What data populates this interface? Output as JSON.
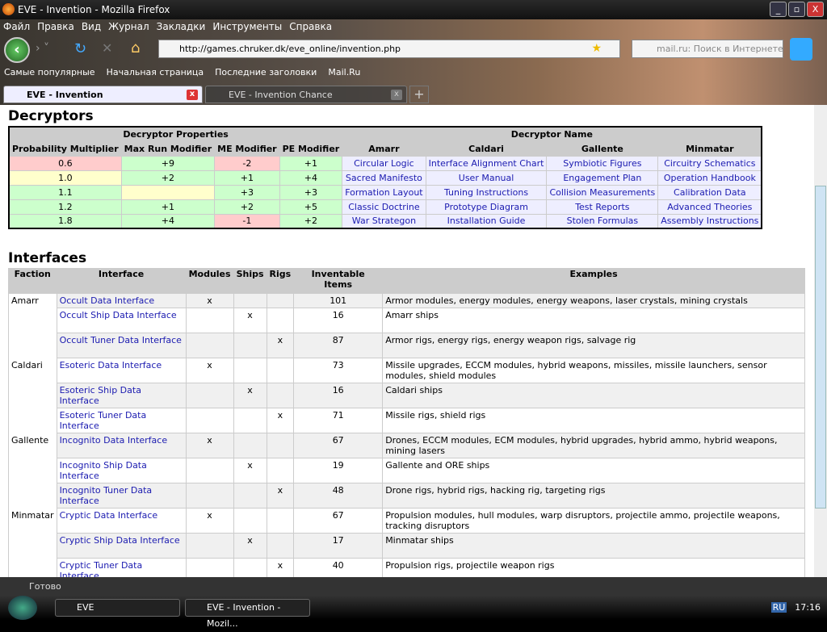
{
  "window": {
    "title": "EVE - Invention - Mozilla Firefox"
  },
  "menu": [
    "Файл",
    "Правка",
    "Вид",
    "Журнал",
    "Закладки",
    "Инструменты",
    "Справка"
  ],
  "url": "http://games.chruker.dk/eve_online/invention.php",
  "search_placeholder": "mail.ru: Поиск в Интернете",
  "bookmarks": [
    "Самые популярные",
    "Начальная страница",
    "Последние заголовки",
    "Mail.Ru"
  ],
  "tabs": [
    {
      "label": "EVE - Invention",
      "active": true
    },
    {
      "label": "EVE - Invention Chance",
      "active": false
    }
  ],
  "decryptors": {
    "heading": "Decryptors",
    "group_headers": [
      "Decryptor Properties",
      "Decryptor Name"
    ],
    "columns": [
      "Probability Multiplier",
      "Max Run Modifier",
      "ME Modifier",
      "PE Modifier",
      "Amarr",
      "Caldari",
      "Gallente",
      "Minmatar"
    ],
    "rows": [
      {
        "prob": "0.6",
        "run": "+9",
        "me": "-2",
        "pe": "+1",
        "names": [
          "Circular Logic",
          "Interface Alignment Chart",
          "Symbiotic Figures",
          "Circuitry Schematics"
        ]
      },
      {
        "prob": "1.0",
        "run": "+2",
        "me": "+1",
        "pe": "+4",
        "names": [
          "Sacred Manifesto",
          "User Manual",
          "Engagement Plan",
          "Operation Handbook"
        ]
      },
      {
        "prob": "1.1",
        "run": "",
        "me": "+3",
        "pe": "+3",
        "names": [
          "Formation Layout",
          "Tuning Instructions",
          "Collision Measurements",
          "Calibration Data"
        ]
      },
      {
        "prob": "1.2",
        "run": "+1",
        "me": "+2",
        "pe": "+5",
        "names": [
          "Classic Doctrine",
          "Prototype Diagram",
          "Test Reports",
          "Advanced Theories"
        ]
      },
      {
        "prob": "1.8",
        "run": "+4",
        "me": "-1",
        "pe": "+2",
        "names": [
          "War Strategon",
          "Installation Guide",
          "Stolen Formulas",
          "Assembly Instructions"
        ]
      }
    ]
  },
  "interfaces": {
    "heading": "Interfaces",
    "columns": [
      "Faction",
      "Interface",
      "Modules",
      "Ships",
      "Rigs",
      "Inventable Items",
      "Examples"
    ],
    "rows": [
      {
        "faction": "Amarr",
        "iface": "Occult Data Interface",
        "m": "x",
        "s": "",
        "r": "",
        "n": "101",
        "ex": "Armor modules, energy modules, energy weapons, laser crystals, mining crystals"
      },
      {
        "faction": "",
        "iface": "Occult Ship Data Interface",
        "m": "",
        "s": "x",
        "r": "",
        "n": "16",
        "ex": "Amarr ships"
      },
      {
        "faction": "",
        "iface": "Occult Tuner Data Interface",
        "m": "",
        "s": "",
        "r": "x",
        "n": "87",
        "ex": "Armor rigs, energy rigs, energy weapon rigs, salvage rig"
      },
      {
        "faction": "Caldari",
        "iface": "Esoteric Data Interface",
        "m": "x",
        "s": "",
        "r": "",
        "n": "73",
        "ex": "Missile upgrades, ECCM modules, hybrid weapons, missiles, missile launchers, sensor modules, shield modules"
      },
      {
        "faction": "",
        "iface": "Esoteric Ship Data Interface",
        "m": "",
        "s": "x",
        "r": "",
        "n": "16",
        "ex": "Caldari ships"
      },
      {
        "faction": "",
        "iface": "Esoteric Tuner Data Interface",
        "m": "",
        "s": "",
        "r": "x",
        "n": "71",
        "ex": "Missile rigs, shield rigs"
      },
      {
        "faction": "Gallente",
        "iface": "Incognito Data Interface",
        "m": "x",
        "s": "",
        "r": "",
        "n": "67",
        "ex": "Drones, ECCM modules, ECM modules, hybrid upgrades, hybrid ammo, hybrid weapons, mining lasers"
      },
      {
        "faction": "",
        "iface": "Incognito Ship Data Interface",
        "m": "",
        "s": "x",
        "r": "",
        "n": "19",
        "ex": "Gallente and ORE ships"
      },
      {
        "faction": "",
        "iface": "Incognito Tuner Data Interface",
        "m": "",
        "s": "",
        "r": "x",
        "n": "48",
        "ex": "Drone rigs, hybrid rigs, hacking rig, targeting rigs"
      },
      {
        "faction": "Minmatar",
        "iface": "Cryptic Data Interface",
        "m": "x",
        "s": "",
        "r": "",
        "n": "67",
        "ex": "Propulsion modules, hull modules, warp disruptors, projectile ammo, projectile weapons, tracking disruptors"
      },
      {
        "faction": "",
        "iface": "Cryptic Ship Data Interface",
        "m": "",
        "s": "x",
        "r": "",
        "n": "17",
        "ex": "Minmatar ships"
      },
      {
        "faction": "",
        "iface": "Cryptic Tuner Data Interface",
        "m": "",
        "s": "",
        "r": "x",
        "n": "40",
        "ex": "Propulsion rigs, projectile weapon rigs"
      }
    ]
  },
  "status": "Готово",
  "taskbar": {
    "items": [
      "EVE",
      "EVE - Invention - Mozil..."
    ],
    "lang": "RU",
    "clock": "17:16"
  }
}
